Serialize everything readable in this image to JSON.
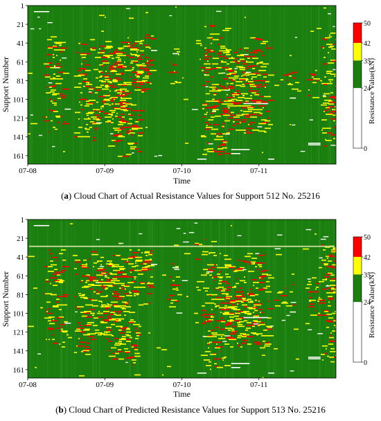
{
  "colors": {
    "green": "#1a7f0e",
    "yellow": "#ffff00",
    "red": "#ff0000",
    "white": "#ffffff"
  },
  "chart_data": [
    {
      "type": "heatmap",
      "panel": "a",
      "caption_prefix": "(",
      "caption_letter": "a",
      "caption_text": ") Cloud Chart of Actual Resistance Values for Support 512 No. 25216",
      "xlabel": "Time",
      "ylabel": "Support Number",
      "x_ticks": [
        "07-08",
        "07-09",
        "07-10",
        "07-11"
      ],
      "y_ticks": [
        1,
        21,
        41,
        61,
        81,
        101,
        121,
        141,
        161
      ],
      "y_range": [
        1,
        170
      ],
      "colorbar_label": "Resistance Value(kN)",
      "colorbar_ticks": [
        0,
        24,
        35,
        42,
        50
      ],
      "color_bins": [
        {
          "range": [
            0,
            24
          ],
          "color": "white"
        },
        {
          "range": [
            24,
            35
          ],
          "color": "green"
        },
        {
          "range": [
            35,
            42
          ],
          "color": "yellow"
        },
        {
          "range": [
            42,
            50
          ],
          "color": "red"
        }
      ],
      "hot_zones_note_free": true,
      "seed": 25216
    },
    {
      "type": "heatmap",
      "panel": "b",
      "caption_prefix": "(",
      "caption_letter": "b",
      "caption_text": ") Cloud Chart of Predicted Resistance Values for Support 513 No. 25216",
      "xlabel": "Time",
      "ylabel": "Support Number",
      "x_ticks": [
        "07-08",
        "07-09",
        "07-10",
        "07-11"
      ],
      "y_ticks": [
        1,
        21,
        41,
        61,
        81,
        101,
        121,
        141,
        161
      ],
      "y_range": [
        1,
        170
      ],
      "colorbar_label": "Resistance Value(kN)",
      "colorbar_ticks": [
        0,
        24,
        35,
        42,
        50
      ],
      "color_bins": [
        {
          "range": [
            0,
            24
          ],
          "color": "white"
        },
        {
          "range": [
            24,
            35
          ],
          "color": "green"
        },
        {
          "range": [
            35,
            42
          ],
          "color": "yellow"
        },
        {
          "range": [
            42,
            50
          ],
          "color": "red"
        }
      ],
      "hot_zones_note_free": true,
      "seed": 25217
    }
  ]
}
